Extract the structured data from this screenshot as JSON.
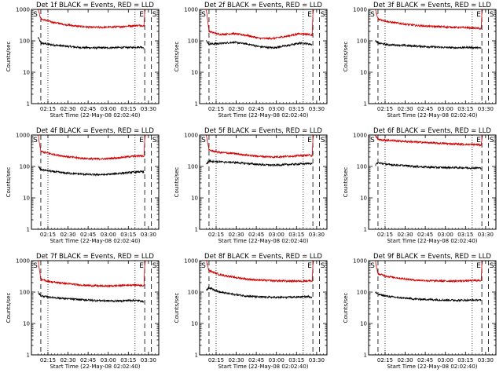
{
  "common": {
    "xlabel": "Start Time (22-May-08 02:02:40)",
    "ylabel": "Counts/sec",
    "legend_text": "BLACK = Events, RED = LLD",
    "x_tick_labels": [
      "02:15",
      "02:30",
      "02:45",
      "03:00",
      "03:15",
      "03:30"
    ],
    "y_tick_labels": [
      "1",
      "10",
      "100",
      "1000"
    ],
    "marker_E": "E",
    "marker_S": "S",
    "series_colors": {
      "events": "#000000",
      "lld": "#d00000"
    }
  },
  "chart_data": [
    {
      "type": "line",
      "scale": "log-y",
      "title": "Det 1f BLACK = Events, RED = LLD",
      "x_unit": "minutes since 02:02:40",
      "xlim": [
        0,
        95
      ],
      "ylim": [
        1,
        1000
      ],
      "dashed_lines": [
        7,
        84.5,
        89.5
      ],
      "dotted_lines": [
        12.3,
        77.3
      ],
      "marker_E_at": 84.5,
      "marker_S_at": 89.5,
      "series": [
        {
          "name": "Events",
          "x": [
            5,
            7,
            15,
            25,
            35,
            45,
            55,
            65,
            75,
            82,
            84
          ],
          "y": [
            130,
            85,
            75,
            68,
            62,
            60,
            60,
            61,
            62,
            64,
            60
          ]
        },
        {
          "name": "LLD",
          "x": [
            5,
            7,
            15,
            25,
            35,
            45,
            55,
            65,
            75,
            82,
            84,
            84.5,
            85
          ],
          "y": [
            1000,
            500,
            400,
            330,
            290,
            270,
            270,
            280,
            300,
            310,
            300,
            800,
            1000
          ]
        }
      ]
    },
    {
      "type": "line",
      "scale": "log-y",
      "title": "Det 2f BLACK = Events, RED = LLD",
      "x_unit": "minutes since 02:02:40",
      "xlim": [
        0,
        95
      ],
      "ylim": [
        1,
        1000
      ],
      "dashed_lines": [
        7,
        84.5,
        89.5
      ],
      "dotted_lines": [
        12.3,
        77.3
      ],
      "marker_E_at": 84.5,
      "marker_S_at": 89.5,
      "series": [
        {
          "name": "Events",
          "x": [
            5,
            7,
            15,
            25,
            35,
            45,
            55,
            65,
            75,
            82,
            84
          ],
          "y": [
            100,
            80,
            82,
            90,
            80,
            65,
            60,
            70,
            85,
            80,
            75
          ]
        },
        {
          "name": "LLD",
          "x": [
            5,
            7,
            15,
            25,
            35,
            45,
            55,
            65,
            75,
            82,
            84,
            84.5,
            85
          ],
          "y": [
            1000,
            200,
            160,
            170,
            150,
            120,
            120,
            140,
            170,
            160,
            150,
            700,
            1000
          ]
        }
      ]
    },
    {
      "type": "line",
      "scale": "log-y",
      "title": "Det 3f BLACK = Events, RED = LLD",
      "x_unit": "minutes since 02:02:40",
      "xlim": [
        0,
        95
      ],
      "ylim": [
        1,
        1000
      ],
      "dashed_lines": [
        7,
        84.5,
        89.5
      ],
      "dotted_lines": [
        12.3,
        77.3
      ],
      "marker_E_at": 84.5,
      "marker_S_at": 89.5,
      "series": [
        {
          "name": "Events",
          "x": [
            5,
            7,
            15,
            25,
            35,
            45,
            55,
            65,
            75,
            82,
            84
          ],
          "y": [
            100,
            85,
            75,
            72,
            68,
            65,
            62,
            60,
            62,
            60,
            58
          ]
        },
        {
          "name": "LLD",
          "x": [
            5,
            7,
            15,
            25,
            35,
            45,
            55,
            65,
            75,
            82,
            84,
            84.5,
            85
          ],
          "y": [
            1000,
            500,
            400,
            350,
            310,
            290,
            280,
            270,
            260,
            250,
            240,
            700,
            1000
          ]
        }
      ]
    },
    {
      "type": "line",
      "scale": "log-y",
      "title": "Det 4f BLACK = Events, RED = LLD",
      "x_unit": "minutes since 02:02:40",
      "xlim": [
        0,
        95
      ],
      "ylim": [
        1,
        1000
      ],
      "dashed_lines": [
        7,
        84.5,
        89.5
      ],
      "dotted_lines": [
        12.3,
        77.3
      ],
      "marker_E_at": 84.5,
      "marker_S_at": 89.5,
      "series": [
        {
          "name": "Events",
          "x": [
            5,
            7,
            15,
            25,
            35,
            45,
            55,
            65,
            75,
            82,
            84
          ],
          "y": [
            100,
            80,
            70,
            62,
            58,
            55,
            55,
            60,
            65,
            68,
            65
          ]
        },
        {
          "name": "LLD",
          "x": [
            5,
            7,
            15,
            25,
            35,
            45,
            55,
            65,
            75,
            82,
            84,
            84.5,
            85
          ],
          "y": [
            1000,
            300,
            250,
            210,
            185,
            175,
            175,
            190,
            210,
            220,
            210,
            700,
            1000
          ]
        }
      ]
    },
    {
      "type": "line",
      "scale": "log-y",
      "title": "Det 5f BLACK = Events, RED = LLD",
      "x_unit": "minutes since 02:02:40",
      "xlim": [
        0,
        95
      ],
      "ylim": [
        1,
        1000
      ],
      "dashed_lines": [
        7,
        84.5,
        89.5
      ],
      "dotted_lines": [
        12.3,
        77.3
      ],
      "marker_E_at": 84.5,
      "marker_S_at": 89.5,
      "series": [
        {
          "name": "Events",
          "x": [
            5,
            7,
            15,
            25,
            35,
            45,
            55,
            65,
            75,
            82,
            84
          ],
          "y": [
            120,
            150,
            140,
            135,
            125,
            115,
            110,
            115,
            120,
            125,
            120
          ]
        },
        {
          "name": "LLD",
          "x": [
            5,
            7,
            15,
            25,
            35,
            45,
            55,
            65,
            75,
            82,
            84,
            84.5,
            85
          ],
          "y": [
            1000,
            330,
            280,
            260,
            230,
            210,
            200,
            210,
            220,
            230,
            220,
            700,
            1000
          ]
        }
      ]
    },
    {
      "type": "line",
      "scale": "log-y",
      "title": "Det 6f BLACK = Events, RED = LLD",
      "x_unit": "minutes since 02:02:40",
      "xlim": [
        0,
        95
      ],
      "ylim": [
        1,
        1000
      ],
      "dashed_lines": [
        7,
        84.5,
        89.5
      ],
      "dotted_lines": [
        12.3,
        77.3
      ],
      "marker_E_at": 84.5,
      "marker_S_at": 89.5,
      "series": [
        {
          "name": "Events",
          "x": [
            5,
            7,
            15,
            25,
            35,
            45,
            55,
            65,
            75,
            82,
            84
          ],
          "y": [
            110,
            130,
            115,
            108,
            100,
            95,
            92,
            92,
            90,
            90,
            88
          ]
        },
        {
          "name": "LLD",
          "x": [
            5,
            7,
            15,
            25,
            35,
            45,
            55,
            65,
            75,
            82,
            84,
            84.5,
            85
          ],
          "y": [
            1000,
            720,
            680,
            640,
            600,
            570,
            540,
            520,
            500,
            490,
            480,
            700,
            1000
          ]
        }
      ]
    },
    {
      "type": "line",
      "scale": "log-y",
      "title": "Det 7f BLACK = Events, RED = LLD",
      "x_unit": "minutes since 02:02:40",
      "xlim": [
        0,
        95
      ],
      "ylim": [
        1,
        1000
      ],
      "dashed_lines": [
        7,
        84.5,
        89.5
      ],
      "dotted_lines": [
        12.3,
        77.3
      ],
      "marker_E_at": 84.5,
      "marker_S_at": 89.5,
      "series": [
        {
          "name": "Events",
          "x": [
            5,
            7,
            15,
            25,
            35,
            45,
            55,
            65,
            75,
            82,
            84
          ],
          "y": [
            100,
            75,
            68,
            62,
            58,
            55,
            53,
            52,
            55,
            52,
            50
          ]
        },
        {
          "name": "LLD",
          "x": [
            5,
            7,
            15,
            25,
            35,
            45,
            55,
            65,
            75,
            82,
            84,
            84.5,
            85
          ],
          "y": [
            1000,
            250,
            210,
            190,
            170,
            160,
            155,
            160,
            170,
            165,
            160,
            700,
            1000
          ]
        }
      ]
    },
    {
      "type": "line",
      "scale": "log-y",
      "title": "Det 8f BLACK = Events, RED = LLD",
      "x_unit": "minutes since 02:02:40",
      "xlim": [
        0,
        95
      ],
      "ylim": [
        1,
        1000
      ],
      "dashed_lines": [
        7,
        84.5,
        89.5
      ],
      "dotted_lines": [
        12.3,
        77.3
      ],
      "marker_E_at": 84.5,
      "marker_S_at": 89.5,
      "series": [
        {
          "name": "Events",
          "x": [
            5,
            7,
            15,
            25,
            35,
            45,
            55,
            65,
            75,
            82,
            84
          ],
          "y": [
            110,
            140,
            100,
            85,
            75,
            70,
            68,
            68,
            70,
            72,
            68
          ]
        },
        {
          "name": "LLD",
          "x": [
            5,
            7,
            15,
            25,
            35,
            45,
            55,
            65,
            75,
            82,
            84,
            84.5,
            85
          ],
          "y": [
            1000,
            480,
            360,
            300,
            260,
            240,
            230,
            225,
            225,
            230,
            220,
            700,
            1000
          ]
        }
      ]
    },
    {
      "type": "line",
      "scale": "log-y",
      "title": "Det 9f BLACK = Events, RED = LLD",
      "x_unit": "minutes since 02:02:40",
      "xlim": [
        0,
        95
      ],
      "ylim": [
        1,
        1000
      ],
      "dashed_lines": [
        7,
        84.5,
        89.5
      ],
      "dotted_lines": [
        12.3,
        77.3
      ],
      "marker_E_at": 84.5,
      "marker_S_at": 89.5,
      "series": [
        {
          "name": "Events",
          "x": [
            5,
            7,
            15,
            25,
            35,
            45,
            55,
            65,
            75,
            82,
            84
          ],
          "y": [
            100,
            85,
            72,
            65,
            60,
            58,
            56,
            55,
            55,
            56,
            54
          ]
        },
        {
          "name": "LLD",
          "x": [
            5,
            7,
            15,
            25,
            35,
            45,
            55,
            65,
            75,
            82,
            84,
            84.5,
            85
          ],
          "y": [
            1000,
            380,
            310,
            270,
            240,
            230,
            225,
            225,
            230,
            235,
            230,
            700,
            1000
          ]
        }
      ]
    }
  ]
}
